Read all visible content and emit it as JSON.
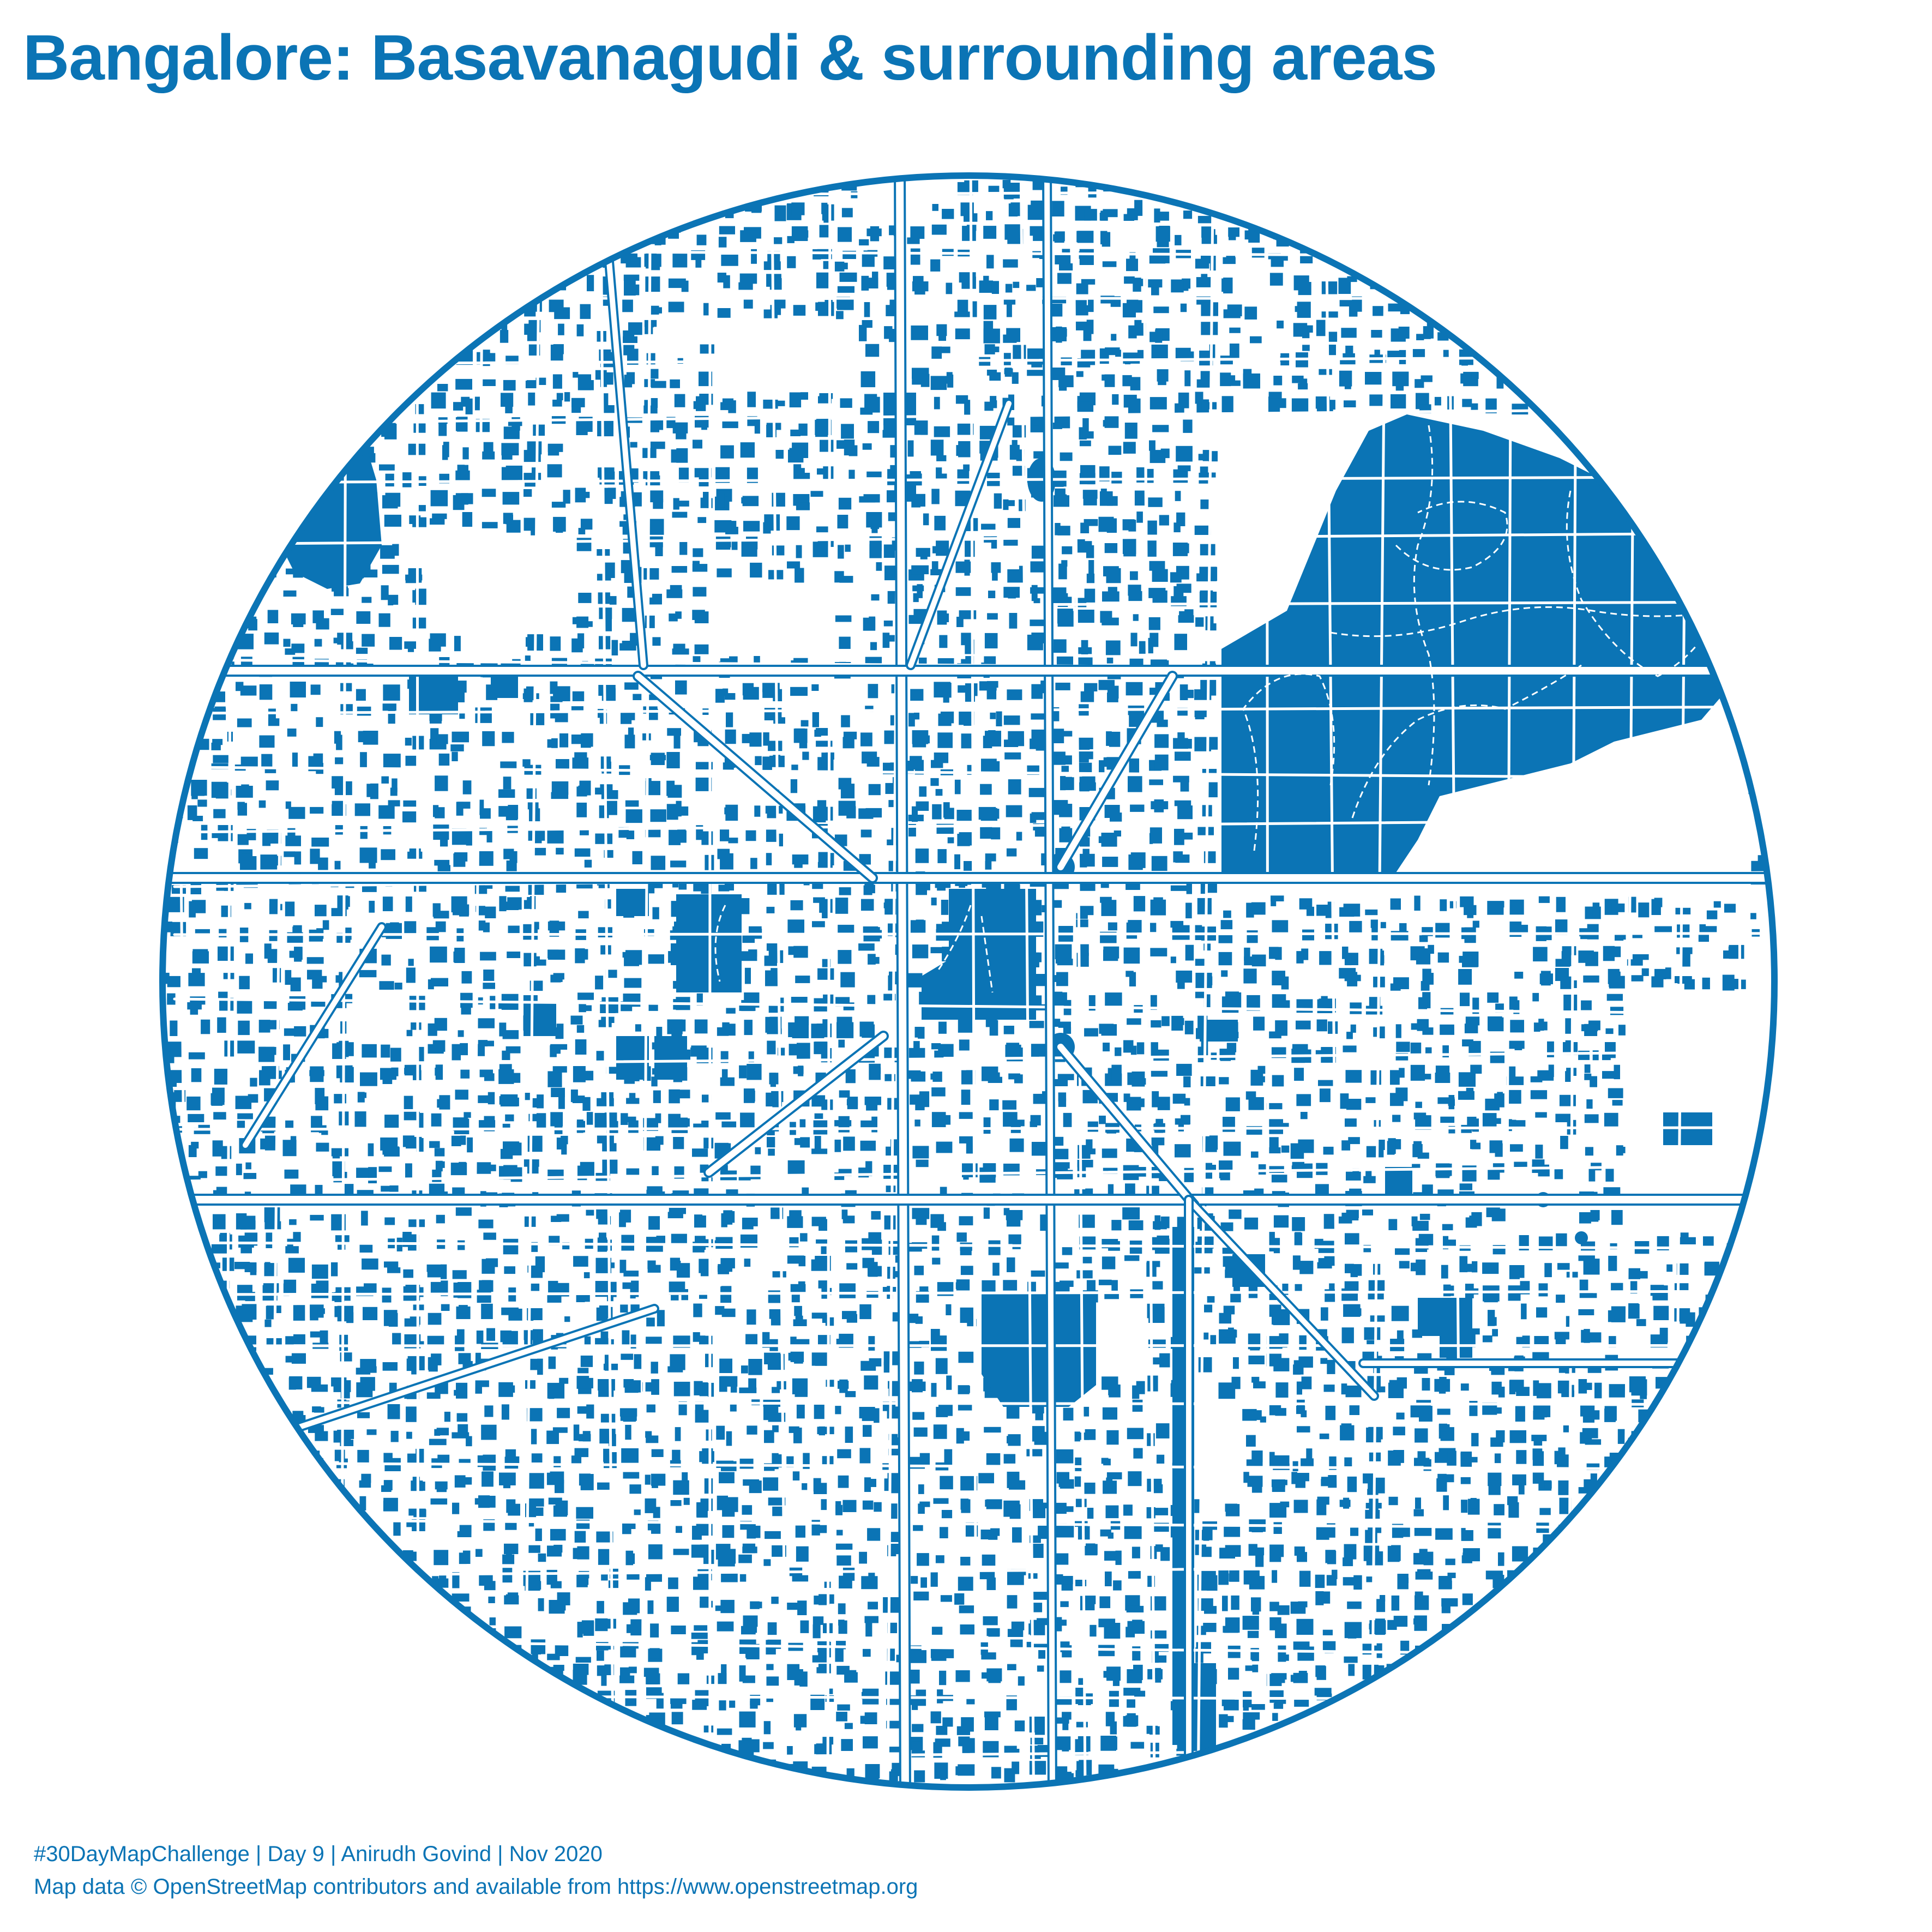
{
  "title": "Bangalore: Basavanagudi & surrounding areas",
  "caption_line1": "#30DayMapChallenge | Day 9 | Anirudh Govind | Nov 2020",
  "caption_line2": "Map data © OpenStreetMap contributors and available from https://www.openstreetmap.org",
  "colors": {
    "ink": "#0b74b5",
    "background": "#ffffff"
  },
  "map": {
    "frame": "circle",
    "features": [
      "buildings",
      "roads",
      "parks",
      "lakes",
      "paths"
    ]
  }
}
